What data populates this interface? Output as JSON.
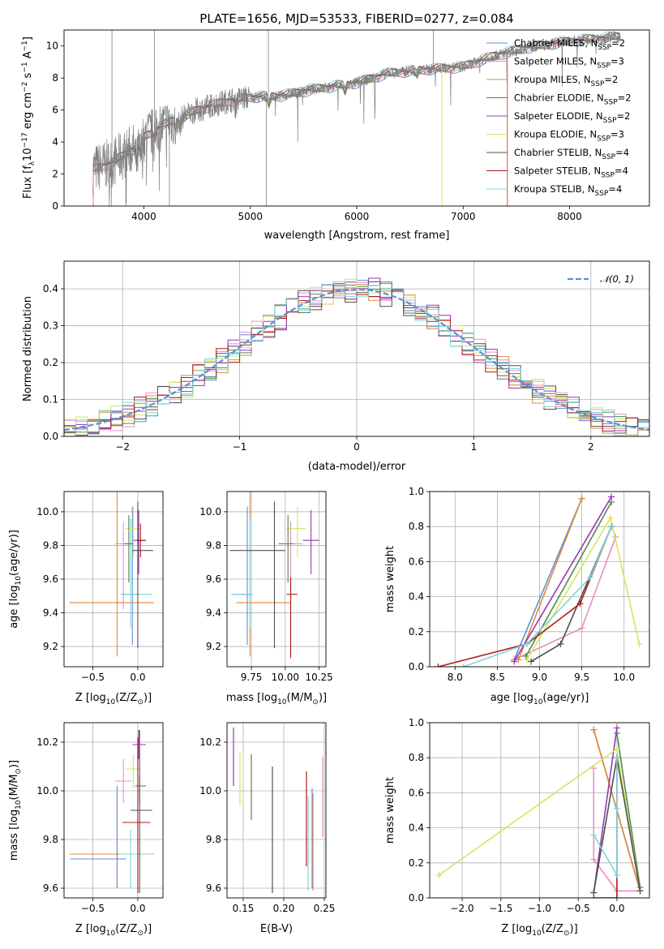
{
  "title": "PLATE=1656, MJD=53533, FIBERID=0277, z=0.084",
  "colors": {
    "Chabrier MILES": "#5b8fd9",
    "Salpeter MILES": "#e88fc2",
    "Kroupa MILES": "#e08a3c",
    "Chabrier ELODIE": "#4f8a4f",
    "Salpeter ELODIE": "#9a35b5",
    "Kroupa ELODIE": "#d4e65a",
    "Chabrier STELIB": "#505050",
    "Salpeter STELIB": "#b01c1c",
    "Kroupa STELIB": "#7fd6d9",
    "data": "#808080",
    "normal": "#5b8fd9"
  },
  "chart_data": [
    {
      "id": "spectrum",
      "type": "line",
      "title": "PLATE=1656, MJD=53533, FIBERID=0277, z=0.084",
      "xlabel": "wavelength [Angstrom, rest frame]",
      "ylabel_main": "Flux [f",
      "ylabel_sub": "λ",
      "ylabel_mid": "10",
      "ylabel_exp1": "−17",
      "ylabel_unit": " erg cm",
      "ylabel_exp2": "−2",
      "ylabel_s": " s",
      "ylabel_exp3": "−1",
      "ylabel_a": " A",
      "ylabel_exp4": "−1",
      "ylabel_end": "]",
      "xlim": [
        3250,
        8750
      ],
      "ylim": [
        0,
        11
      ],
      "xticks": [
        4000,
        5000,
        6000,
        7000,
        8000
      ],
      "yticks": [
        0,
        2,
        4,
        6,
        8,
        10
      ],
      "continuum": [
        [
          3520,
          2.3
        ],
        [
          3700,
          2.7
        ],
        [
          3900,
          3.6
        ],
        [
          4000,
          4.3
        ],
        [
          4200,
          5.1
        ],
        [
          4500,
          6.0
        ],
        [
          4800,
          6.6
        ],
        [
          5000,
          6.8
        ],
        [
          5300,
          6.9
        ],
        [
          5600,
          7.3
        ],
        [
          6000,
          7.7
        ],
        [
          6300,
          8.3
        ],
        [
          6600,
          8.5
        ],
        [
          7000,
          8.7
        ],
        [
          7300,
          9.4
        ],
        [
          7600,
          9.9
        ],
        [
          8000,
          10.3
        ],
        [
          8300,
          10.5
        ],
        [
          8480,
          10.6
        ]
      ],
      "legend": [
        {
          "name": "Chabrier MILES, N",
          "sub": "SSP",
          "val": "=2"
        },
        {
          "name": "Salpeter MILES, N",
          "sub": "SSP",
          "val": "=3"
        },
        {
          "name": "Kroupa MILES, N",
          "sub": "SSP",
          "val": "=2"
        },
        {
          "name": "Chabrier ELODIE, N",
          "sub": "SSP",
          "val": "=2"
        },
        {
          "name": "Salpeter ELODIE, N",
          "sub": "SSP",
          "val": "=2"
        },
        {
          "name": "Kroupa ELODIE, N",
          "sub": "SSP",
          "val": "=3"
        },
        {
          "name": "Chabrier STELIB, N",
          "sub": "SSP",
          "val": "=4"
        },
        {
          "name": "Salpeter STELIB, N",
          "sub": "SSP",
          "val": "=4"
        },
        {
          "name": "Kroupa STELIB, N",
          "sub": "SSP",
          "val": "=4"
        }
      ]
    },
    {
      "id": "residuals",
      "type": "line",
      "xlabel": "(data-model)/error",
      "ylabel": "Normed distribution",
      "xlim": [
        -2.5,
        2.5
      ],
      "ylim": [
        0,
        0.475
      ],
      "xticks": [
        -2,
        -1,
        0,
        1,
        2
      ],
      "xtick_labels": [
        "−2",
        "−1",
        "0",
        "1",
        "2"
      ],
      "yticks": [
        0.0,
        0.1,
        0.2,
        0.3,
        0.4
      ],
      "ytick_labels": [
        "0.0",
        "0.1",
        "0.2",
        "0.3",
        "0.4"
      ],
      "legend": "𝒩(0, 1)"
    },
    {
      "id": "age_vs_Z",
      "type": "scatter",
      "xlabel": "Z [log",
      "xlabel_sub": "10",
      "xlabel_tail": "(Z/Z",
      "xlabel_sun": "⊙",
      "xlabel_end": ")]",
      "ylabel": "age  [log",
      "ylabel_sub": "10",
      "ylabel_tail": "(age/yr)]",
      "xlim": [
        -0.82,
        0.28
      ],
      "ylim": [
        9.08,
        10.12
      ],
      "xticks": [
        -0.5,
        0.0
      ],
      "xtick_labels": [
        "−0.5",
        "0.0"
      ],
      "yticks": [
        9.2,
        9.4,
        9.6,
        9.8,
        10.0
      ],
      "ytick_labels": [
        "9.2",
        "9.4",
        "9.6",
        "9.8",
        "10.0"
      ],
      "points": [
        {
          "s": "Kroupa MILES",
          "x": -0.23,
          "xe": [
            0.53,
            0.41
          ],
          "y": 9.46,
          "ye": [
            0.32,
            0.66
          ]
        },
        {
          "s": "Chabrier MILES",
          "x": -0.06,
          "xe": [
            0.12,
            0.07
          ],
          "y": 9.51,
          "ye": [
            0.3,
            0.52
          ]
        },
        {
          "s": "Salpeter MILES",
          "x": -0.16,
          "xe": [
            0.09,
            0.09
          ],
          "y": 9.81,
          "ye": [
            0.39,
            0.13
          ]
        },
        {
          "s": "Kroupa STELIB",
          "x": -0.08,
          "xe": [
            0.11,
            0.24
          ],
          "y": 9.51,
          "ye": [
            0.2,
            0.45
          ]
        },
        {
          "s": "Kroupa ELODIE",
          "x": -0.05,
          "xe": [
            0.09,
            0.08
          ],
          "y": 9.9,
          "ye": [
            0.17,
            0.13
          ]
        },
        {
          "s": "Chabrier ELODIE",
          "x": -0.1,
          "xe": [
            0.05,
            0.05
          ],
          "y": 9.81,
          "ye": [
            0.23,
            0.17
          ]
        },
        {
          "s": "Salpeter ELODIE",
          "x": 0.01,
          "xe": [
            0.06,
            0.08
          ],
          "y": 9.83,
          "ye": [
            0.2,
            0.18
          ]
        },
        {
          "s": "Salpeter STELIB",
          "x": 0.03,
          "xe": [
            0.04,
            0.06
          ],
          "y": 9.83,
          "ye": [
            0.1,
            0.1
          ]
        },
        {
          "s": "Chabrier STELIB",
          "x": 0.0,
          "xe": [
            0.06,
            0.17
          ],
          "y": 9.77,
          "ye": [
            0.58,
            0.29
          ]
        }
      ]
    },
    {
      "id": "age_vs_mass",
      "type": "scatter",
      "xlabel": "mass [log",
      "xlabel_sub": "10",
      "xlabel_tail": "(M/M",
      "xlabel_sun": "⊙",
      "xlabel_end": ")]",
      "xlim": [
        9.57,
        10.3
      ],
      "ylim": [
        9.08,
        10.12
      ],
      "xticks": [
        9.75,
        10.0,
        10.25
      ],
      "xtick_labels": [
        "9.75",
        "10.00",
        "10.25"
      ],
      "yticks": [
        9.2,
        9.4,
        9.6,
        9.8,
        10.0
      ],
      "ytick_labels": [
        "9.2",
        "9.4",
        "9.6",
        "9.8",
        "10.0"
      ],
      "points": [
        {
          "s": "Kroupa MILES",
          "x": 9.74,
          "xe": [
            0.1,
            0.3
          ],
          "y": 9.46,
          "ye": [
            0.32,
            0.66
          ]
        },
        {
          "s": "Chabrier MILES",
          "x": 9.72,
          "xe": [
            0.11,
            0.04
          ],
          "y": 9.51,
          "ye": [
            0.3,
            0.52
          ]
        },
        {
          "s": "Salpeter MILES",
          "x": 10.04,
          "xe": [
            0.09,
            0.09
          ],
          "y": 9.81,
          "ye": [
            0.39,
            0.13
          ]
        },
        {
          "s": "Kroupa STELIB",
          "x": 9.74,
          "xe": [
            0.14,
            0.02
          ],
          "y": 9.51,
          "ye": [
            0.2,
            0.45
          ]
        },
        {
          "s": "Kroupa ELODIE",
          "x": 10.09,
          "xe": [
            0.08,
            0.06
          ],
          "y": 9.9,
          "ye": [
            0.17,
            0.13
          ]
        },
        {
          "s": "Chabrier ELODIE",
          "x": 10.02,
          "xe": [
            0.07,
            0.04
          ],
          "y": 9.81,
          "ye": [
            0.23,
            0.17
          ]
        },
        {
          "s": "Salpeter ELODIE",
          "x": 10.19,
          "xe": [
            0.06,
            0.06
          ],
          "y": 9.83,
          "ye": [
            0.2,
            0.18
          ]
        },
        {
          "s": "Salpeter STELIB",
          "x": 10.04,
          "xe": [
            0.03,
            0.05
          ],
          "y": 9.51,
          "ye": [
            0.38,
            0.1
          ]
        },
        {
          "s": "Chabrier STELIB",
          "x": 9.92,
          "xe": [
            0.33,
            0.08
          ],
          "y": 9.77,
          "ye": [
            0.58,
            0.29
          ]
        }
      ]
    },
    {
      "id": "weight_vs_age",
      "type": "line",
      "xlabel": "age  [log",
      "xlabel_sub": "10",
      "xlabel_tail": "(age/yr)]",
      "ylabel": "mass weight",
      "xlim": [
        7.7,
        10.3
      ],
      "ylim": [
        0.0,
        1.0
      ],
      "xticks": [
        8.0,
        8.5,
        9.0,
        9.5,
        10.0
      ],
      "xtick_labels": [
        "8.0",
        "8.5",
        "9.0",
        "9.5",
        "10.0"
      ],
      "yticks": [
        0.0,
        0.2,
        0.4,
        0.6,
        0.8,
        1.0
      ],
      "ytick_labels": [
        "0.0",
        "0.2",
        "0.4",
        "0.6",
        "0.8",
        "1.0"
      ],
      "series": [
        {
          "name": "Chabrier MILES",
          "x": [
            8.7,
            9.5
          ],
          "y": [
            0.04,
            0.96
          ]
        },
        {
          "name": "Salpeter MILES",
          "x": [
            8.7,
            9.5,
            9.9
          ],
          "y": [
            0.04,
            0.22,
            0.74
          ]
        },
        {
          "name": "Kroupa MILES",
          "x": [
            8.75,
            9.5
          ],
          "y": [
            0.04,
            0.96
          ]
        },
        {
          "name": "Chabrier ELODIE",
          "x": [
            8.84,
            9.85
          ],
          "y": [
            0.06,
            0.94
          ]
        },
        {
          "name": "Salpeter ELODIE",
          "x": [
            8.7,
            9.85
          ],
          "y": [
            0.03,
            0.97
          ]
        },
        {
          "name": "Kroupa ELODIE",
          "x": [
            8.85,
            9.84,
            10.18
          ],
          "y": [
            0.04,
            0.85,
            0.13
          ]
        },
        {
          "name": "Chabrier STELIB",
          "x": [
            8.9,
            9.25,
            9.85
          ],
          "y": [
            0.03,
            0.13,
            0.8
          ]
        },
        {
          "name": "Salpeter STELIB",
          "x": [
            7.8,
            8.85,
            9.48,
            9.85
          ],
          "y": [
            0.0,
            0.13,
            0.36,
            0.8
          ]
        },
        {
          "name": "Kroupa STELIB",
          "x": [
            8.1,
            8.85,
            9.6,
            9.85
          ],
          "y": [
            0.0,
            0.13,
            0.51,
            0.8
          ]
        }
      ]
    },
    {
      "id": "mass_vs_Z",
      "type": "scatter",
      "xlabel": "Z [log",
      "xlabel_sub": "10",
      "xlabel_tail": "(Z/Z",
      "xlabel_sun": "⊙",
      "xlabel_end": ")]",
      "ylabel": "mass [log",
      "ylabel_sub": "10",
      "ylabel_tail": "(M/M",
      "ylabel_sun": "⊙",
      "ylabel_end": ")]",
      "xlim": [
        -0.82,
        0.28
      ],
      "ylim": [
        9.56,
        10.28
      ],
      "xticks": [
        -0.5,
        0.0
      ],
      "xtick_labels": [
        "−0.5",
        "0.0"
      ],
      "yticks": [
        9.6,
        9.8,
        10.0,
        10.2
      ],
      "ytick_labels": [
        "9.6",
        "9.8",
        "10.0",
        "10.2"
      ],
      "points": [
        {
          "s": "Kroupa MILES",
          "x": -0.23,
          "xe": [
            0.53,
            0.41
          ],
          "y": 9.74,
          "ye": [
            0.14,
            0.24
          ]
        },
        {
          "s": "Chabrier MILES",
          "x": -0.23,
          "xe": [
            0.52,
            0.1
          ],
          "y": 9.72,
          "ye": [
            0.12,
            0.3
          ]
        },
        {
          "s": "Salpeter MILES",
          "x": -0.16,
          "xe": [
            0.09,
            0.09
          ],
          "y": 10.04,
          "ye": [
            0.09,
            0.09
          ]
        },
        {
          "s": "Kroupa STELIB",
          "x": -0.08,
          "xe": [
            0.12,
            0.24
          ],
          "y": 9.74,
          "ye": [
            0.14,
            0.1
          ]
        },
        {
          "s": "Kroupa ELODIE",
          "x": -0.05,
          "xe": [
            0.08,
            0.08
          ],
          "y": 10.09,
          "ye": [
            0.08,
            0.06
          ]
        },
        {
          "s": "Chabrier ELODIE",
          "x": 0.02,
          "xe": [
            0.05,
            0.07
          ],
          "y": 10.02,
          "ye": [
            0.07,
            0.04
          ]
        },
        {
          "s": "Salpeter ELODIE",
          "x": 0.01,
          "xe": [
            0.07,
            0.08
          ],
          "y": 10.19,
          "ye": [
            0.06,
            0.06
          ]
        },
        {
          "s": "Salpeter STELIB",
          "x": 0.0,
          "xe": [
            0.17,
            0.14
          ],
          "y": 9.87,
          "ye": [
            0.29,
            0.35
          ]
        },
        {
          "s": "Chabrier STELIB",
          "x": 0.02,
          "xe": [
            0.1,
            0.14
          ],
          "y": 9.92,
          "ye": [
            0.34,
            0.33
          ]
        }
      ]
    },
    {
      "id": "mass_vs_EBV",
      "type": "scatter",
      "xlabel": "E(B-V)",
      "xlim": [
        0.13,
        0.252
      ],
      "ylim": [
        9.56,
        10.28
      ],
      "xticks": [
        0.15,
        0.2,
        0.25
      ],
      "xtick_labels": [
        "0.15",
        "0.20",
        "0.25"
      ],
      "yticks": [
        9.6,
        9.8,
        10.0,
        10.2
      ],
      "ytick_labels": [
        "9.6",
        "9.8",
        "10.0",
        "10.2"
      ],
      "lines": [
        {
          "s": "Salpeter ELODIE",
          "x": 0.138,
          "y": [
            10.02,
            10.26
          ]
        },
        {
          "s": "Kroupa ELODIE",
          "x": 0.146,
          "y": [
            9.94,
            10.16
          ]
        },
        {
          "s": "Chabrier ELODIE",
          "x": 0.16,
          "y": [
            9.88,
            10.15
          ]
        },
        {
          "s": "Chabrier STELIB",
          "x": 0.186,
          "y": [
            9.58,
            10.1
          ]
        },
        {
          "s": "Salpeter STELIB",
          "x": 0.228,
          "y": [
            9.69,
            10.08
          ]
        },
        {
          "s": "Kroupa STELIB",
          "x": 0.23,
          "y": [
            9.59,
            9.98
          ]
        },
        {
          "s": "Chabrier MILES",
          "x": 0.235,
          "y": [
            9.6,
            10.01
          ]
        },
        {
          "s": "Kroupa MILES",
          "x": 0.236,
          "y": [
            9.59,
            9.99
          ]
        },
        {
          "s": "Salpeter MILES",
          "x": 0.248,
          "y": [
            9.81,
            10.14
          ]
        }
      ]
    },
    {
      "id": "weight_vs_Z",
      "type": "line",
      "xlabel": "Z [log",
      "xlabel_sub": "10",
      "xlabel_tail": "(Z/Z",
      "xlabel_sun": "⊙",
      "xlabel_end": ")]",
      "ylabel": "mass weight",
      "xlim": [
        -2.42,
        0.42
      ],
      "ylim": [
        0.0,
        1.0
      ],
      "xticks": [
        -2.0,
        -1.5,
        -1.0,
        -0.5,
        0.0
      ],
      "xtick_labels": [
        "−2.0",
        "−1.5",
        "−1.0",
        "−0.5",
        "0.0"
      ],
      "yticks": [
        0.0,
        0.2,
        0.4,
        0.6,
        0.8,
        1.0
      ],
      "ytick_labels": [
        "0.0",
        "0.2",
        "0.4",
        "0.6",
        "0.8",
        "1.0"
      ],
      "series": [
        {
          "name": "Chabrier MILES",
          "x": [
            -0.3,
            0.3
          ],
          "y": [
            0.96,
            0.04
          ]
        },
        {
          "name": "Salpeter MILES",
          "x": [
            -0.3,
            -0.3,
            0.0,
            0.3
          ],
          "y": [
            0.74,
            0.22,
            0.04,
            0.04
          ]
        },
        {
          "name": "Kroupa MILES",
          "x": [
            -0.3,
            0.3
          ],
          "y": [
            0.96,
            0.04
          ]
        },
        {
          "name": "Chabrier ELODIE",
          "x": [
            0.0,
            0.3
          ],
          "y": [
            0.94,
            0.06
          ]
        },
        {
          "name": "Salpeter ELODIE",
          "x": [
            -0.3,
            0.0
          ],
          "y": [
            0.03,
            0.97
          ]
        },
        {
          "name": "Kroupa ELODIE",
          "x": [
            -2.3,
            0.0,
            0.3
          ],
          "y": [
            0.13,
            0.85,
            0.04
          ]
        },
        {
          "name": "Chabrier STELIB",
          "x": [
            -0.3,
            0.0,
            0.3
          ],
          "y": [
            0.03,
            0.8,
            0.04
          ]
        },
        {
          "name": "Salpeter STELIB",
          "x": [
            -0.3,
            0.0,
            0.0
          ],
          "y": [
            0.0,
            0.0,
            0.8
          ]
        },
        {
          "name": "Kroupa STELIB",
          "x": [
            -0.3,
            0.0,
            0.0,
            0.0
          ],
          "y": [
            0.36,
            0.13,
            0.51,
            0.8
          ]
        }
      ]
    }
  ]
}
